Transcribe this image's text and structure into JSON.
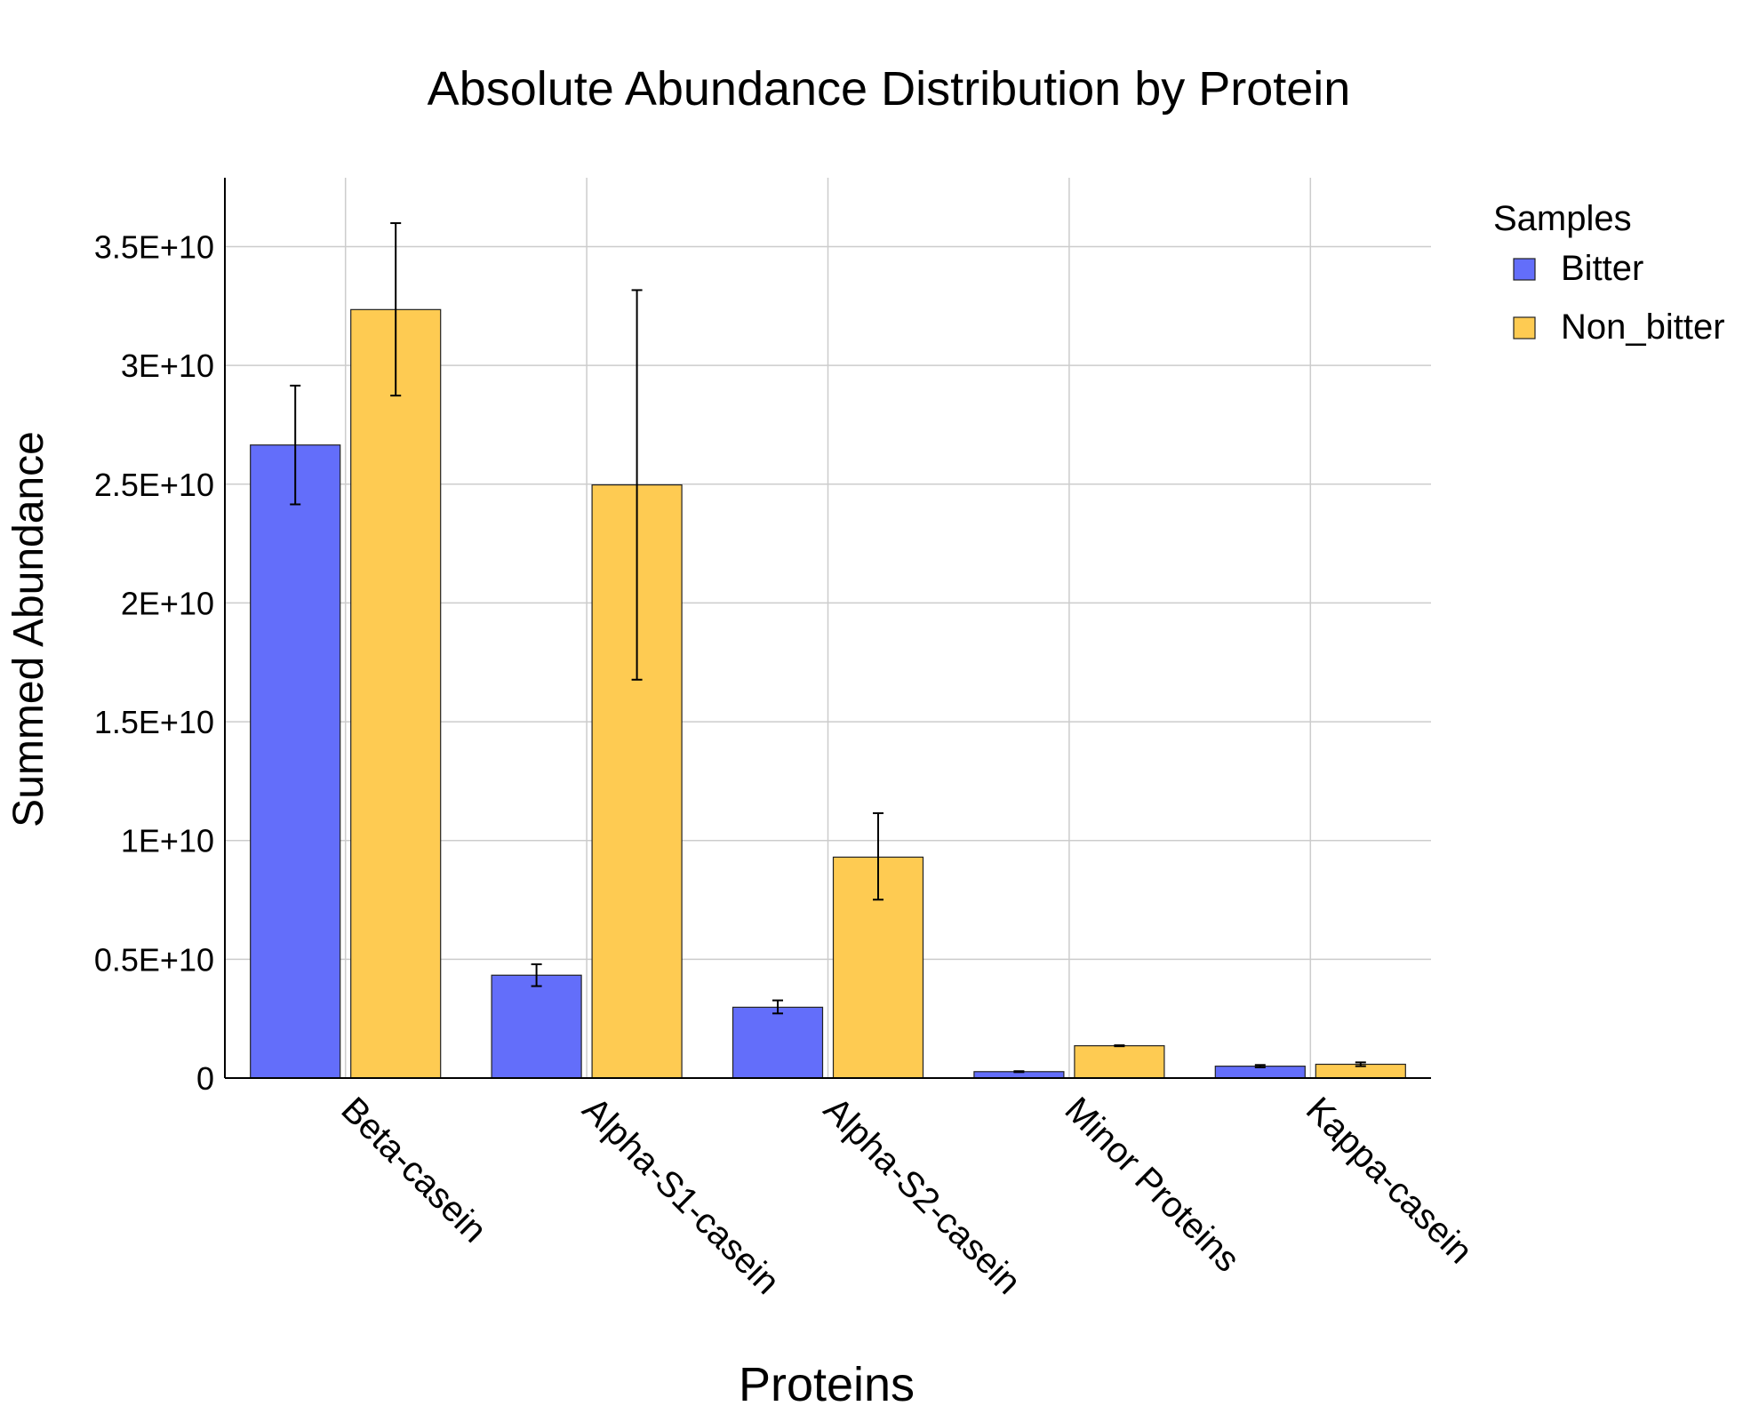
{
  "chart_data": {
    "type": "bar",
    "title": "Absolute Abundance Distribution by Protein",
    "xlabel": "Proteins",
    "ylabel": "Summed Abundance",
    "categories": [
      "Beta-casein",
      "Alpha-S1-casein",
      "Alpha-S2-casein",
      "Minor Proteins",
      "Kappa-casein"
    ],
    "series": [
      {
        "name": "Bitter",
        "color": "#636efa",
        "values": [
          26650000000,
          4330000000,
          2980000000,
          270000000,
          500000000
        ],
        "error_low": [
          24150000000,
          3870000000,
          2720000000,
          250000000,
          450000000
        ],
        "error_high": [
          29150000000,
          4790000000,
          3270000000,
          290000000,
          550000000
        ]
      },
      {
        "name": "Non_bitter",
        "color": "#fecb52",
        "values": [
          32350000000,
          24970000000,
          9300000000,
          1360000000,
          580000000
        ],
        "error_low": [
          28730000000,
          16770000000,
          7510000000,
          1340000000,
          500000000
        ],
        "error_high": [
          35990000000,
          33170000000,
          11150000000,
          1380000000,
          660000000
        ]
      }
    ],
    "ylim": [
      0,
      37900000000
    ],
    "yticks": [
      0,
      5000000000,
      10000000000,
      15000000000,
      20000000000,
      25000000000,
      30000000000,
      35000000000
    ],
    "ytick_labels": [
      "0",
      "0.5E+10",
      "1E+10",
      "1.5E+10",
      "2E+10",
      "2.5E+10",
      "3E+10",
      "3.5E+10"
    ],
    "legend": {
      "title": "Samples",
      "position": "right"
    },
    "grid": true
  }
}
